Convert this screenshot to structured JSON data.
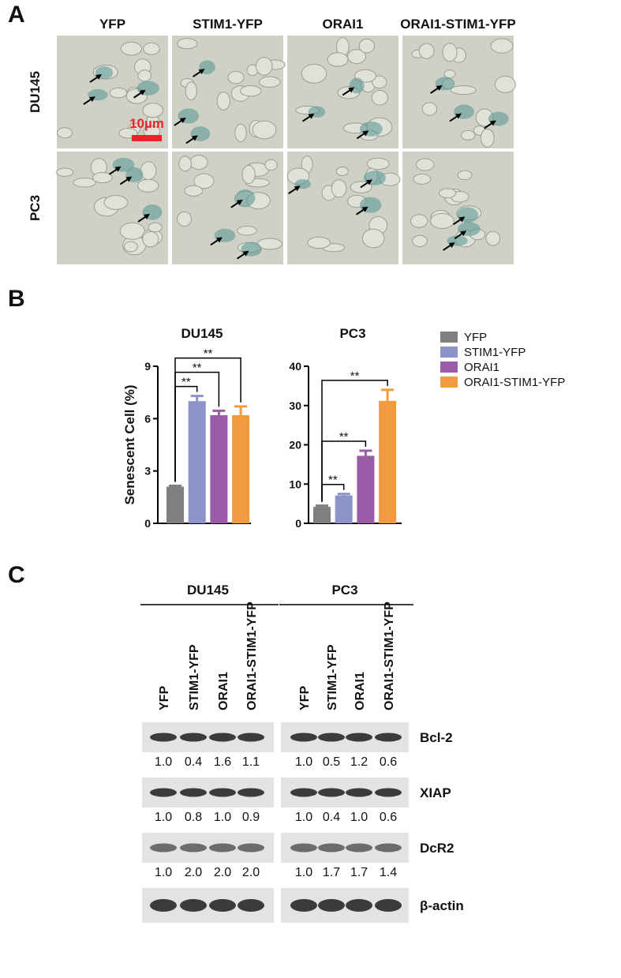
{
  "panel_labels": [
    "A",
    "B",
    "C"
  ],
  "panel_a": {
    "columns": [
      "YFP",
      "STIM1-YFP",
      "ORAI1",
      "ORAI1-STIM1-YFP"
    ],
    "rows": [
      "DU145",
      "PC3"
    ],
    "scale_bar": "10µm"
  },
  "legend": {
    "names": [
      "YFP",
      "STIM1-YFP",
      "ORAI1",
      "ORAI1-STIM1-YFP"
    ],
    "colors": [
      "#7f7f7f",
      "#8b93c9",
      "#9a5ca6",
      "#f29b3e"
    ]
  },
  "chart_data": [
    {
      "type": "bar",
      "title": "DU145",
      "y_label": "Senescent Cell (%)",
      "values": [
        2.1,
        7.0,
        6.2,
        6.2
      ],
      "errors": [
        0.05,
        0.3,
        0.25,
        0.5
      ],
      "ylim": [
        0,
        9
      ],
      "yticks": [
        0,
        3,
        6,
        9
      ],
      "comparisons": [
        {
          "label": "**",
          "pair": [
            "YFP",
            "STIM1-YFP"
          ]
        },
        {
          "label": "**",
          "pair": [
            "YFP",
            "ORAI1"
          ]
        },
        {
          "label": "**",
          "pair": [
            "YFP",
            "ORAI1-STIM1-YFP"
          ]
        }
      ]
    },
    {
      "type": "bar",
      "title": "PC3",
      "values": [
        4.2,
        7.1,
        17.2,
        31.2
      ],
      "errors": [
        0.3,
        0.4,
        1.3,
        2.8
      ],
      "ylim": [
        0,
        40
      ],
      "yticks": [
        0,
        10,
        20,
        30,
        40
      ],
      "comparisons": [
        {
          "label": "**",
          "pair": [
            "YFP",
            "STIM1-YFP"
          ]
        },
        {
          "label": "**",
          "pair": [
            "YFP",
            "ORAI1"
          ]
        },
        {
          "label": "**",
          "pair": [
            "YFP",
            "ORAI1-STIM1-YFP"
          ]
        }
      ]
    }
  ],
  "panel_c": {
    "groups": [
      "DU145",
      "PC3"
    ],
    "lanes": [
      "YFP",
      "STIM1-YFP",
      "ORAI1",
      "ORAI1-STIM1-YFP"
    ],
    "blots": [
      {
        "name": "Bcl-2",
        "ratios": [
          [
            "1.0",
            "0.4",
            "1.6",
            "1.1"
          ],
          [
            "1.0",
            "0.5",
            "1.2",
            "0.6"
          ]
        ]
      },
      {
        "name": "XIAP",
        "ratios": [
          [
            "1.0",
            "0.8",
            "1.0",
            "0.9"
          ],
          [
            "1.0",
            "0.4",
            "1.0",
            "0.6"
          ]
        ]
      },
      {
        "name": "DcR2",
        "ratios": [
          [
            "1.0",
            "2.0",
            "2.0",
            "2.0"
          ],
          [
            "1.0",
            "1.7",
            "1.7",
            "1.4"
          ]
        ]
      },
      {
        "name": "β-actin"
      }
    ]
  }
}
